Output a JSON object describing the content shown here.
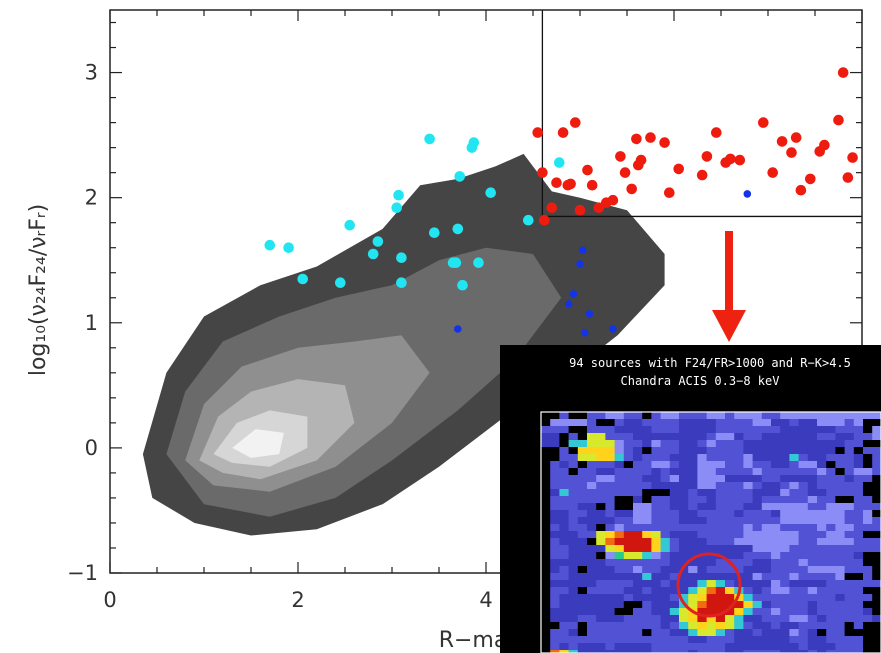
{
  "chart_data": {
    "type": "scatter",
    "xlabel": "R−mag",
    "ylabel": "log₁₀(ν₂₄F₂₄/νᵣFᵣ)",
    "xlim": [
      0,
      8
    ],
    "ylim": [
      -1,
      3.5
    ],
    "x_ticks": [
      "0",
      "2",
      "4"
    ],
    "y_ticks": [
      "−1",
      "0",
      "1",
      "2",
      "3"
    ],
    "selection": {
      "r_mag_min": 4.6,
      "log_ratio_min": 1.85
    },
    "colors": {
      "cyan": "#22e5f2",
      "blue": "#1433e6",
      "red": "#ee1c0e",
      "arrow": "#ee2211"
    },
    "density_contours": [
      {
        "level": 1,
        "color": "#454545",
        "points": [
          [
            0.35,
            -0.05
          ],
          [
            0.6,
            0.6
          ],
          [
            1.0,
            1.05
          ],
          [
            1.6,
            1.3
          ],
          [
            2.2,
            1.45
          ],
          [
            2.9,
            1.75
          ],
          [
            3.3,
            2.1
          ],
          [
            3.7,
            2.15
          ],
          [
            4.1,
            2.25
          ],
          [
            4.4,
            2.35
          ],
          [
            4.7,
            2.05
          ],
          [
            5.0,
            2.0
          ],
          [
            5.5,
            1.9
          ],
          [
            5.9,
            1.55
          ],
          [
            5.9,
            1.3
          ],
          [
            5.4,
            0.9
          ],
          [
            4.8,
            0.55
          ],
          [
            4.2,
            0.25
          ],
          [
            3.5,
            -0.15
          ],
          [
            2.9,
            -0.45
          ],
          [
            2.2,
            -0.65
          ],
          [
            1.5,
            -0.7
          ],
          [
            0.9,
            -0.6
          ],
          [
            0.45,
            -0.4
          ]
        ]
      },
      {
        "level": 2,
        "color": "#6a6a6a",
        "points": [
          [
            0.6,
            -0.05
          ],
          [
            0.8,
            0.45
          ],
          [
            1.2,
            0.85
          ],
          [
            1.8,
            1.05
          ],
          [
            2.4,
            1.2
          ],
          [
            3.0,
            1.3
          ],
          [
            3.5,
            1.5
          ],
          [
            4.0,
            1.6
          ],
          [
            4.5,
            1.55
          ],
          [
            4.8,
            1.2
          ],
          [
            4.3,
            0.7
          ],
          [
            3.7,
            0.3
          ],
          [
            3.0,
            -0.1
          ],
          [
            2.4,
            -0.4
          ],
          [
            1.7,
            -0.55
          ],
          [
            1.0,
            -0.45
          ]
        ]
      },
      {
        "level": 3,
        "color": "#8f8f8f",
        "points": [
          [
            0.8,
            -0.1
          ],
          [
            1.0,
            0.35
          ],
          [
            1.4,
            0.65
          ],
          [
            2.0,
            0.8
          ],
          [
            2.6,
            0.85
          ],
          [
            3.1,
            0.9
          ],
          [
            3.4,
            0.6
          ],
          [
            3.0,
            0.2
          ],
          [
            2.4,
            -0.15
          ],
          [
            1.7,
            -0.35
          ],
          [
            1.1,
            -0.3
          ]
        ]
      },
      {
        "level": 4,
        "color": "#b4b4b4",
        "points": [
          [
            0.95,
            -0.1
          ],
          [
            1.15,
            0.25
          ],
          [
            1.5,
            0.45
          ],
          [
            2.0,
            0.55
          ],
          [
            2.5,
            0.5
          ],
          [
            2.6,
            0.2
          ],
          [
            2.2,
            -0.1
          ],
          [
            1.6,
            -0.25
          ],
          [
            1.2,
            -0.2
          ]
        ]
      },
      {
        "level": 5,
        "color": "#d6d6d6",
        "points": [
          [
            1.1,
            -0.05
          ],
          [
            1.35,
            0.2
          ],
          [
            1.7,
            0.3
          ],
          [
            2.1,
            0.25
          ],
          [
            2.1,
            0.0
          ],
          [
            1.7,
            -0.15
          ],
          [
            1.3,
            -0.12
          ]
        ]
      },
      {
        "level": 6,
        "color": "#f2f2f2",
        "points": [
          [
            1.3,
            0.0
          ],
          [
            1.55,
            0.15
          ],
          [
            1.85,
            0.12
          ],
          [
            1.8,
            -0.05
          ],
          [
            1.5,
            -0.08
          ]
        ]
      }
    ],
    "series": [
      {
        "color": "cyan",
        "x": [
          1.7,
          1.9,
          2.05,
          2.45,
          2.55,
          2.8,
          2.85,
          3.05,
          3.07,
          3.1,
          3.1,
          3.4,
          3.45,
          3.65,
          3.68,
          3.7,
          3.72,
          3.75,
          3.85,
          3.87,
          3.92,
          4.05,
          4.45,
          4.78
        ],
        "y": [
          1.62,
          1.6,
          1.35,
          1.32,
          1.78,
          1.55,
          1.65,
          1.92,
          2.02,
          1.52,
          1.32,
          2.47,
          1.72,
          1.48,
          1.48,
          1.75,
          2.17,
          1.3,
          2.4,
          2.44,
          1.48,
          2.04,
          1.82,
          2.28
        ]
      },
      {
        "color": "blue",
        "x": [
          3.7,
          4.88,
          4.93,
          5.0,
          5.03,
          5.05,
          5.1,
          5.35,
          6.78
        ],
        "y": [
          0.95,
          1.15,
          1.23,
          1.47,
          1.58,
          0.92,
          1.07,
          0.95,
          2.03
        ]
      },
      {
        "color": "red",
        "x": [
          4.55,
          4.6,
          4.62,
          4.7,
          4.75,
          4.82,
          4.87,
          4.9,
          4.95,
          5.0,
          5.08,
          5.13,
          5.2,
          5.28,
          5.35,
          5.43,
          5.48,
          5.55,
          5.6,
          5.62,
          5.65,
          5.75,
          5.9,
          5.95,
          6.05,
          6.3,
          6.35,
          6.45,
          6.55,
          6.6,
          6.7,
          6.95,
          7.05,
          7.15,
          7.25,
          7.3,
          7.35,
          7.45,
          7.55,
          7.6,
          7.75,
          7.8,
          7.85,
          7.9
        ],
        "y": [
          2.52,
          2.2,
          1.82,
          1.92,
          2.12,
          2.52,
          2.1,
          2.11,
          2.6,
          1.9,
          2.22,
          2.1,
          1.92,
          1.96,
          1.98,
          2.33,
          2.2,
          2.07,
          2.47,
          2.26,
          2.3,
          2.48,
          2.44,
          2.04,
          2.23,
          2.18,
          2.33,
          2.52,
          2.28,
          2.31,
          2.3,
          2.6,
          2.2,
          2.45,
          2.36,
          2.48,
          2.06,
          2.15,
          2.37,
          2.42,
          2.62,
          3.0,
          2.16,
          2.32
        ]
      }
    ]
  },
  "inset": {
    "title_line1": "94 sources with F24/FR>1000 and R−K>4.5",
    "title_line2": "Chandra ACIS 0.3−8 keV",
    "palette": [
      "#3b3bbd",
      "#5252d4",
      "#8c8cf6",
      "#7f7f82",
      "#34c8d4",
      "#2cc98a",
      "#d8e82c",
      "#ffd21c",
      "#f26b13",
      "#d1160f",
      "#000000"
    ],
    "pixels": [
      "AA1AB112211A1221112212221122222222222",
      "A22221AA100111100001111220010022212AA",
      "111AA111000011100001111111000000111A2",
      "00A1A66111000000001220110000001100112",
      "00A44666211021100121110000000000011AA",
      "AA1A7777210A11100011110000000000A1A11",
      "AA116677410111000211112000041001110A1",
      "A101A1110A112210022211211001220A110A1",
      "A11A1100111101000221111211111121A1221",
      "A11111221110012002220000110000111011A",
      "A1111211111100000221112100121011111AA",
      "A0411111111AAA001001111000211001111AA",
      "A1111111AA0A11001101111011111211AA11A",
      "A11100A1AA221100100111002222211222111",
      "A00110010022111001111011102222222112A",
      "A001000011221110001111111122222221121",
      "A10110A121111111111111212211112122111",
      "A0001167899761000111112222221112211AA",
      "A1000A6899997410001112222222112222111",
      "A110000679997410000000022221111111111",
      "A11000A2566421000000001112111111110AA",
      "A0000001111111000001111001112111111AA",
      "A010A0001121100020111100011112222111A",
      "A11000000004001000000002111211112AA1A",
      "A000001111000100046410000210000111111",
      "A110A111100100004689741012211211111AA",
      "A10000000100001467999741111111110111A",
      "A10000000AA100046899997401111011111AA",
      "A0000000AA11004679999741121110111110A",
      "A000110001111006797964001112210111110",
      "AA11A1111111101467676410010011111A1AA",
      "A110A111111A110046641001000210A11AAAA",
      "A1111111111111110011100000011001111AA",
      "A1010001000011111111000000001000111AA",
      "A8740000000011110111001111000101111AA",
      "7997400000000000011110111100000011111",
      "8998700000000010100100000021110001111"
    ]
  }
}
